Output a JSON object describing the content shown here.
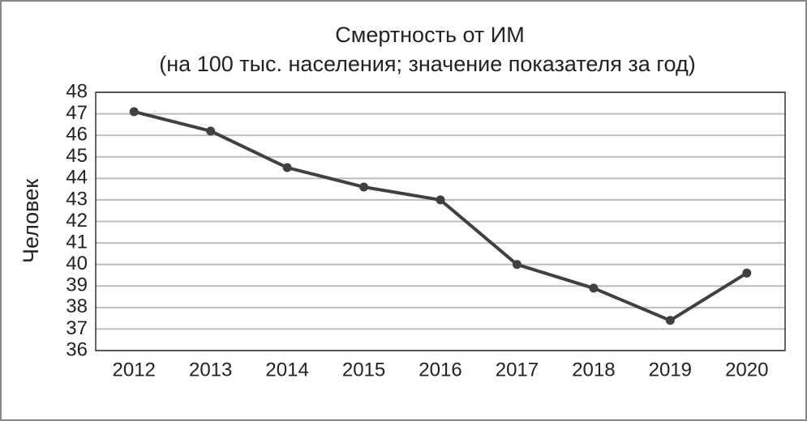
{
  "chart_data": {
    "type": "line",
    "title": "Смертность от ИМ",
    "subtitle": "(на 100 тыс. населения; значение показателя за год)",
    "y_label": "Человек",
    "categories": [
      "2012",
      "2013",
      "2014",
      "2015",
      "2016",
      "2017",
      "2018",
      "2019",
      "2020"
    ],
    "values": [
      47.1,
      46.2,
      44.5,
      43.6,
      43.0,
      40.0,
      38.9,
      37.4,
      39.6
    ],
    "color": "#404040",
    "ylim": [
      36,
      48
    ],
    "yticks": [
      36,
      37,
      38,
      39,
      40,
      41,
      42,
      43,
      44,
      45,
      46,
      47,
      48
    ],
    "grid": true
  }
}
